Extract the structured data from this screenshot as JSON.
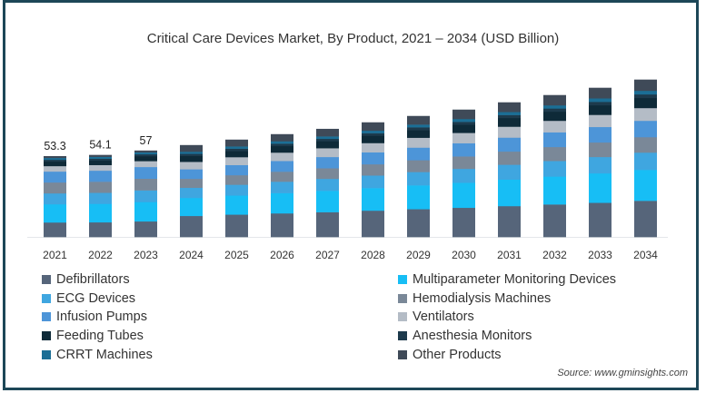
{
  "chart_data": {
    "type": "bar",
    "stacked": true,
    "title": "Critical Care Devices Market, By Product, 2021 – 2034 (USD Billion)",
    "xlabel": "",
    "ylabel": "",
    "ylim": [
      0,
      110
    ],
    "grid": false,
    "legend_position": "bottom",
    "categories": [
      "2021",
      "2022",
      "2023",
      "2024",
      "2025",
      "2026",
      "2027",
      "2028",
      "2029",
      "2030",
      "2031",
      "2032",
      "2033",
      "2034"
    ],
    "totals": [
      53.3,
      54.1,
      57,
      60.6,
      64.2,
      67.8,
      71.4,
      75.6,
      79.8,
      84.0,
      88.8,
      93.6,
      98.4,
      103.8
    ],
    "total_labels": [
      "53.3",
      "54.1",
      "57",
      "",
      "",
      "",
      "",
      "",
      "",
      "",
      "",
      "",
      "",
      ""
    ],
    "series": [
      {
        "name": "Defibrillators",
        "color": "#56657a",
        "values": [
          9.6,
          9.7,
          10.3,
          13.9,
          14.8,
          15.6,
          16.4,
          17.4,
          18.4,
          19.3,
          20.4,
          21.5,
          22.6,
          23.9
        ]
      },
      {
        "name": "Multiparameter Monitoring Devices",
        "color": "#17bef5",
        "values": [
          12.0,
          12.2,
          12.8,
          11.9,
          12.6,
          13.4,
          14.1,
          14.9,
          15.7,
          16.5,
          17.5,
          18.4,
          19.4,
          20.4
        ]
      },
      {
        "name": "ECG Devices",
        "color": "#3fa6e0",
        "values": [
          7.2,
          7.3,
          7.7,
          6.7,
          7.1,
          7.5,
          7.9,
          8.3,
          8.8,
          9.2,
          9.8,
          10.3,
          10.8,
          11.4
        ]
      },
      {
        "name": "Hemodialysis Machines",
        "color": "#7a8898",
        "values": [
          7.2,
          7.3,
          7.7,
          5.9,
          6.3,
          6.6,
          7.0,
          7.4,
          7.8,
          8.2,
          8.7,
          9.2,
          9.6,
          10.2
        ]
      },
      {
        "name": "Infusion Pumps",
        "color": "#4d95d8",
        "values": [
          7.2,
          7.3,
          7.7,
          6.3,
          6.7,
          7.1,
          7.4,
          7.9,
          8.3,
          8.7,
          9.2,
          9.7,
          10.2,
          10.8
        ]
      },
      {
        "name": "Ventilators",
        "color": "#b4bcc6",
        "values": [
          3.6,
          3.7,
          3.9,
          4.9,
          5.2,
          5.5,
          5.8,
          6.1,
          6.5,
          6.8,
          7.2,
          7.6,
          8.0,
          8.4
        ]
      },
      {
        "name": "Feeding Tubes",
        "color": "#0e2a38",
        "values": [
          3.0,
          3.0,
          3.2,
          3.9,
          4.1,
          4.3,
          4.6,
          4.8,
          5.1,
          5.4,
          5.7,
          6.0,
          6.3,
          6.6
        ]
      },
      {
        "name": "Anesthesia Monitors",
        "color": "#1d3a4c",
        "values": [
          1.2,
          1.2,
          1.3,
          1.4,
          1.5,
          1.6,
          1.6,
          1.7,
          1.8,
          1.9,
          2.0,
          2.1,
          2.3,
          2.4
        ]
      },
      {
        "name": "CRRT Machines",
        "color": "#1b6e95",
        "values": [
          1.2,
          1.2,
          1.3,
          1.4,
          1.5,
          1.6,
          1.6,
          1.7,
          1.8,
          1.9,
          2.0,
          2.1,
          2.3,
          2.4
        ]
      },
      {
        "name": "Other Products",
        "color": "#3f4a58",
        "values": [
          1.1,
          1.2,
          1.1,
          4.3,
          4.4,
          4.6,
          4.9,
          5.4,
          5.6,
          6.1,
          6.3,
          6.7,
          6.9,
          7.3
        ]
      }
    ],
    "source": "Source: www.gminsights.com"
  },
  "legend": {
    "left": [
      {
        "label": "Defibrillators",
        "color": "#56657a"
      },
      {
        "label": "ECG Devices",
        "color": "#3fa6e0"
      },
      {
        "label": "Infusion Pumps",
        "color": "#4d95d8"
      },
      {
        "label": "Feeding Tubes",
        "color": "#0e2a38"
      },
      {
        "label": "CRRT Machines",
        "color": "#1b6e95"
      }
    ],
    "right": [
      {
        "label": "Multiparameter Monitoring Devices",
        "color": "#17bef5"
      },
      {
        "label": "Hemodialysis Machines",
        "color": "#7a8898"
      },
      {
        "label": "Ventilators",
        "color": "#b4bcc6"
      },
      {
        "label": "Anesthesia Monitors",
        "color": "#1d3a4c"
      },
      {
        "label": "Other Products",
        "color": "#3f4a58"
      }
    ]
  }
}
